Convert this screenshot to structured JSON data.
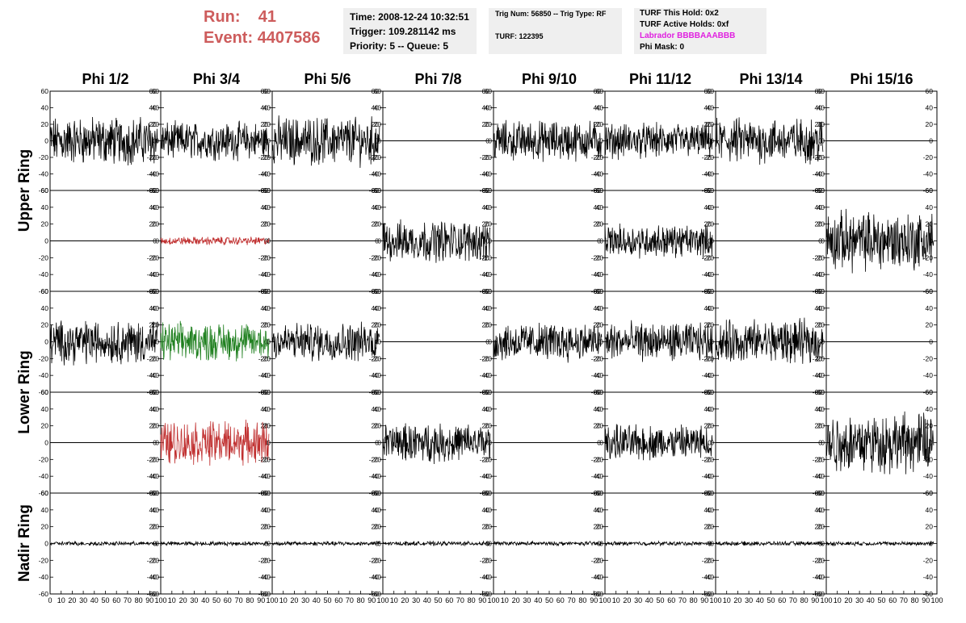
{
  "header": {
    "run_label": "Run:",
    "run_value": "41",
    "event_label": "Event:",
    "event_value": "4407586",
    "time": "Time: 2008-12-24 10:32:51",
    "trigger": "Trigger: 109.281142 ms",
    "priority": "Priority: 5 -- Queue: 5",
    "trig_num": "Trig Num: 56850 -- Trig Type: RF",
    "turf": "TURF: 122395",
    "turf_this_hold": "TURF This Hold: 0x2",
    "turf_active_holds": "TURF Active Holds: 0xf",
    "labrador": "Labrador BBBBAAABBB",
    "phi_mask": "Phi Mask: 0"
  },
  "colors": {
    "text_red": "#cd5c5c",
    "magenta": "#e020e0",
    "trace_black": "#000000",
    "trace_red": "#c03030",
    "trace_green": "#208020",
    "box_bg": "#efefef"
  },
  "chart_data": {
    "type": "line",
    "columns": [
      "Phi 1/2",
      "Phi 3/4",
      "Phi 5/6",
      "Phi 7/8",
      "Phi 9/10",
      "Phi 11/12",
      "Phi 13/14",
      "Phi 15/16"
    ],
    "ring_labels": [
      "Upper Ring",
      "Lower Ring",
      "Nadir Ring"
    ],
    "rows": 5,
    "ylim": [
      -60,
      60
    ],
    "y_ticks": [
      -60,
      -40,
      -20,
      0,
      20,
      40,
      60
    ],
    "xlim": [
      0,
      100
    ],
    "x_tick_labels": [
      [
        "0",
        "10",
        "20",
        "30",
        "40",
        "50",
        "60",
        "70",
        "80",
        "90",
        "100"
      ],
      [
        "10",
        "20",
        "30",
        "40",
        "50",
        "60",
        "70",
        "80",
        "90",
        "100"
      ],
      [
        "10",
        "20",
        "30",
        "40",
        "50",
        "60",
        "70",
        "80",
        "90",
        "100"
      ],
      [
        "10",
        "20",
        "30",
        "40",
        "50",
        "60",
        "70",
        "80",
        "90",
        "100"
      ],
      [
        "10",
        "20",
        "30",
        "40",
        "50",
        "60",
        "70",
        "80",
        "90",
        "100"
      ],
      [
        "10",
        "20",
        "30",
        "40",
        "50",
        "60",
        "70",
        "80",
        "90",
        "100"
      ],
      [
        "10",
        "20",
        "30",
        "40",
        "50",
        "60",
        "70",
        "80",
        "90",
        "100"
      ],
      [
        "10",
        "20",
        "30",
        "40",
        "50",
        "60",
        "70",
        "80",
        "90",
        "100"
      ]
    ],
    "amplitudes": [
      [
        18,
        14,
        18,
        0,
        15,
        13,
        17,
        0
      ],
      [
        0,
        3,
        0,
        15,
        0,
        12,
        0,
        22
      ],
      [
        16,
        14,
        14,
        0,
        14,
        14,
        16,
        0
      ],
      [
        0,
        16,
        0,
        14,
        0,
        13,
        0,
        22
      ],
      [
        1.5,
        1.5,
        1.5,
        1.5,
        1.5,
        1.5,
        1.5,
        1.5
      ]
    ],
    "trace_colors": [
      [
        "black",
        "black",
        "black",
        "black",
        "black",
        "black",
        "black",
        "black"
      ],
      [
        "black",
        "red",
        "black",
        "black",
        "black",
        "black",
        "black",
        "black"
      ],
      [
        "black",
        "green",
        "black",
        "black",
        "black",
        "black",
        "black",
        "black"
      ],
      [
        "black",
        "red",
        "black",
        "black",
        "black",
        "black",
        "black",
        "black"
      ],
      [
        "black",
        "black",
        "black",
        "black",
        "black",
        "black",
        "black",
        "black"
      ]
    ]
  }
}
